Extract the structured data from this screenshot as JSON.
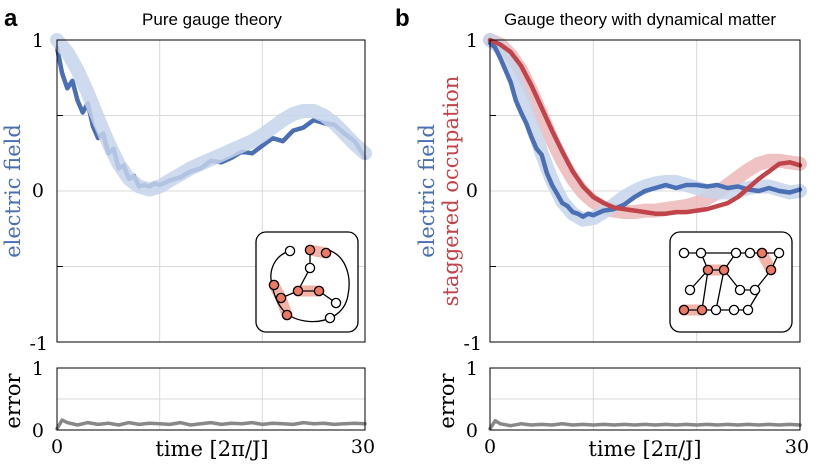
{
  "colors": {
    "blue": "#4a6fb5",
    "blue_band": "#c5d3ea",
    "red": "#c0444a",
    "red_band": "#ecb8b8",
    "gray": "#888888",
    "grid": "#d9d9d9",
    "node_red": "#ec7a62",
    "node_red_glow": "#f4b3a7"
  },
  "panels": [
    {
      "label": "a",
      "title": "Pure gauge theory",
      "ylabel_main": "electric field",
      "ylabel_secondary": "",
      "ylabel_error": "error",
      "xlabel": "time [2π/J]",
      "x_ticks": [
        "0",
        "30"
      ],
      "y_ticks": [
        "1",
        "0",
        "-1"
      ],
      "error_ticks": [
        "1",
        "0"
      ],
      "inset_icon": "spin-ring-lattice-icon"
    },
    {
      "label": "b",
      "title": "Gauge theory with dynamical matter",
      "ylabel_main": "electric field",
      "ylabel_secondary": "staggered occupation",
      "ylabel_error": "error",
      "xlabel": "time [2π/J]",
      "x_ticks": [
        "0",
        "30"
      ],
      "y_ticks": [
        "1",
        "0",
        "-1"
      ],
      "error_ticks": [
        "1",
        "0"
      ],
      "inset_icon": "matter-ladder-lattice-icon"
    }
  ],
  "chart_data": [
    {
      "type": "line",
      "panel": "a",
      "title": "Pure gauge theory",
      "xlabel": "time [2π/J]",
      "ylabel": "electric field",
      "xlim": [
        0,
        30
      ],
      "ylim": [
        -1,
        1
      ],
      "grid": true,
      "series": [
        {
          "name": "electric field (experiment)",
          "color": "blue",
          "x": [
            0,
            0.5,
            1,
            1.5,
            2,
            2.5,
            3,
            3.5,
            4,
            4.5,
            5,
            5.5,
            6,
            6.5,
            7,
            7.5,
            8,
            8.5,
            9,
            9.5,
            10,
            11,
            12,
            13,
            14,
            15,
            16,
            17,
            18,
            19,
            20,
            21,
            22,
            23,
            24,
            25,
            26,
            27,
            28,
            29,
            30
          ],
          "y": [
            0.95,
            0.78,
            0.68,
            0.73,
            0.6,
            0.52,
            0.58,
            0.43,
            0.35,
            0.38,
            0.25,
            0.28,
            0.15,
            0.17,
            0.08,
            0.1,
            0.03,
            0.04,
            0.03,
            0.05,
            0.04,
            0.07,
            0.09,
            0.13,
            0.15,
            0.2,
            0.19,
            0.22,
            0.26,
            0.25,
            0.3,
            0.35,
            0.33,
            0.4,
            0.42,
            0.47,
            0.45,
            0.44,
            0.38,
            0.33,
            0.22
          ]
        },
        {
          "name": "electric field (theory band)",
          "color": "blue_band",
          "x": [
            0,
            1,
            2,
            3,
            4,
            5,
            6,
            7,
            8,
            9,
            10,
            11,
            12,
            13,
            14,
            15,
            16,
            17,
            18,
            19,
            20,
            21,
            22,
            23,
            24,
            25,
            26,
            27,
            28,
            29,
            30
          ],
          "y": [
            1.0,
            0.92,
            0.8,
            0.65,
            0.48,
            0.32,
            0.18,
            0.08,
            0.03,
            0.01,
            0.03,
            0.07,
            0.11,
            0.15,
            0.18,
            0.21,
            0.24,
            0.27,
            0.3,
            0.33,
            0.37,
            0.42,
            0.47,
            0.51,
            0.53,
            0.53,
            0.5,
            0.45,
            0.38,
            0.31,
            0.25
          ]
        }
      ],
      "error": {
        "ylabel": "error",
        "ylim": [
          0,
          1
        ],
        "x": [
          0,
          0.5,
          1,
          2,
          3,
          4,
          5,
          6,
          7,
          8,
          9,
          10,
          11,
          12,
          13,
          14,
          15,
          16,
          17,
          18,
          19,
          20,
          21,
          22,
          23,
          24,
          25,
          26,
          27,
          28,
          29,
          30
        ],
        "y": [
          0.02,
          0.16,
          0.12,
          0.08,
          0.12,
          0.09,
          0.11,
          0.08,
          0.12,
          0.09,
          0.11,
          0.1,
          0.09,
          0.12,
          0.08,
          0.1,
          0.12,
          0.09,
          0.11,
          0.1,
          0.12,
          0.09,
          0.11,
          0.1,
          0.09,
          0.12,
          0.1,
          0.11,
          0.09,
          0.1,
          0.11,
          0.1
        ]
      }
    },
    {
      "type": "line",
      "panel": "b",
      "title": "Gauge theory with dynamical matter",
      "xlabel": "time [2π/J]",
      "ylabel": "electric field / staggered occupation",
      "xlim": [
        0,
        30
      ],
      "ylim": [
        -1,
        1
      ],
      "grid": true,
      "series": [
        {
          "name": "staggered occupation (theory band)",
          "color": "red_band",
          "x": [
            0,
            1,
            2,
            3,
            4,
            5,
            6,
            7,
            8,
            9,
            10,
            11,
            12,
            13,
            14,
            15,
            16,
            17,
            18,
            19,
            20,
            21,
            22,
            23,
            24,
            25,
            26,
            27,
            28,
            29,
            30
          ],
          "y": [
            1.0,
            0.97,
            0.9,
            0.8,
            0.66,
            0.5,
            0.34,
            0.2,
            0.08,
            -0.01,
            -0.07,
            -0.11,
            -0.13,
            -0.14,
            -0.14,
            -0.13,
            -0.13,
            -0.12,
            -0.11,
            -0.1,
            -0.08,
            -0.05,
            -0.01,
            0.04,
            0.09,
            0.14,
            0.18,
            0.2,
            0.2,
            0.19,
            0.18
          ]
        },
        {
          "name": "electric field (theory band)",
          "color": "blue_band",
          "x": [
            0,
            1,
            2,
            3,
            4,
            5,
            6,
            7,
            8,
            9,
            10,
            11,
            12,
            13,
            14,
            15,
            16,
            17,
            18,
            19,
            20,
            21,
            22,
            23,
            24,
            25,
            26,
            27,
            28,
            29,
            30
          ],
          "y": [
            1.0,
            0.95,
            0.82,
            0.65,
            0.45,
            0.25,
            0.07,
            -0.07,
            -0.15,
            -0.19,
            -0.18,
            -0.14,
            -0.09,
            -0.04,
            0.0,
            0.03,
            0.05,
            0.06,
            0.06,
            0.04,
            0.02,
            0.0,
            -0.01,
            -0.01,
            0.0,
            0.02,
            0.03,
            0.03,
            0.01,
            -0.01,
            0.0
          ]
        },
        {
          "name": "electric field (experiment)",
          "color": "blue",
          "x": [
            0,
            0.5,
            1,
            1.5,
            2,
            2.5,
            3,
            3.5,
            4,
            4.5,
            5,
            5.5,
            6,
            6.5,
            7,
            7.5,
            8,
            8.5,
            9,
            9.5,
            10,
            11,
            12,
            13,
            14,
            15,
            16,
            17,
            18,
            19,
            20,
            21,
            22,
            23,
            24,
            25,
            26,
            27,
            28,
            29,
            30
          ],
          "y": [
            0.98,
            0.95,
            0.88,
            0.8,
            0.72,
            0.6,
            0.52,
            0.45,
            0.36,
            0.28,
            0.24,
            0.12,
            0.04,
            -0.02,
            -0.08,
            -0.1,
            -0.14,
            -0.15,
            -0.17,
            -0.15,
            -0.16,
            -0.13,
            -0.12,
            -0.09,
            -0.04,
            0.0,
            0.02,
            0.04,
            0.02,
            0.04,
            0.04,
            0.03,
            0.04,
            0.02,
            0.03,
            0.01,
            0.0,
            0.02,
            0.0,
            -0.01,
            0.01
          ]
        },
        {
          "name": "staggered occupation (experiment)",
          "color": "red",
          "x": [
            0,
            1,
            2,
            3,
            4,
            5,
            6,
            7,
            8,
            9,
            10,
            11,
            12,
            13,
            14,
            15,
            16,
            17,
            18,
            19,
            20,
            21,
            22,
            23,
            24,
            25,
            26,
            27,
            28,
            29,
            30
          ],
          "y": [
            1.0,
            0.97,
            0.92,
            0.83,
            0.7,
            0.55,
            0.4,
            0.26,
            0.13,
            0.03,
            -0.04,
            -0.08,
            -0.11,
            -0.12,
            -0.13,
            -0.14,
            -0.15,
            -0.15,
            -0.14,
            -0.14,
            -0.13,
            -0.12,
            -0.1,
            -0.08,
            -0.04,
            0.02,
            0.08,
            0.13,
            0.18,
            0.19,
            0.17
          ]
        }
      ],
      "error": {
        "ylabel": "error",
        "ylim": [
          0,
          1
        ],
        "x": [
          0,
          0.5,
          1,
          2,
          3,
          4,
          5,
          6,
          7,
          8,
          9,
          10,
          11,
          12,
          13,
          14,
          15,
          16,
          17,
          18,
          19,
          20,
          21,
          22,
          23,
          24,
          25,
          26,
          27,
          28,
          29,
          30
        ],
        "y": [
          0.02,
          0.15,
          0.1,
          0.07,
          0.1,
          0.08,
          0.09,
          0.08,
          0.1,
          0.08,
          0.09,
          0.08,
          0.09,
          0.08,
          0.09,
          0.08,
          0.09,
          0.08,
          0.09,
          0.08,
          0.09,
          0.08,
          0.09,
          0.08,
          0.09,
          0.08,
          0.09,
          0.08,
          0.09,
          0.08,
          0.09,
          0.08
        ]
      }
    }
  ]
}
